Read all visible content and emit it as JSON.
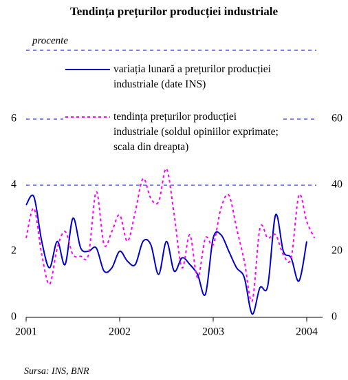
{
  "chart_data": {
    "type": "line",
    "title": "Tendința prețurilor producției industriale",
    "y_label": "procente",
    "source": "Sursa: INS, BNR",
    "xlim": [
      2001,
      2004.17
    ],
    "xticks": [
      2001,
      2002,
      2003,
      2004
    ],
    "ylim": [
      0,
      8
    ],
    "yticks": [
      0,
      2,
      4,
      6
    ],
    "y2lim": [
      0,
      80
    ],
    "y2ticks": [
      0,
      20,
      40,
      60
    ],
    "grid": true,
    "series": [
      {
        "name": "variația lunară a prețurilor producției industriale (date INS)",
        "color": "#0000cc",
        "axis": "y",
        "x": [
          2001,
          2001.083,
          2001.167,
          2001.25,
          2001.333,
          2001.417,
          2001.5,
          2001.583,
          2001.667,
          2001.75,
          2001.833,
          2001.917,
          2002,
          2002.083,
          2002.167,
          2002.25,
          2002.333,
          2002.417,
          2002.5,
          2002.583,
          2002.667,
          2002.75,
          2002.833,
          2002.917,
          2003,
          2003.083,
          2003.167,
          2003.25,
          2003.333,
          2003.417,
          2003.5,
          2003.583,
          2003.667,
          2003.75,
          2003.833,
          2003.917,
          2004
        ],
        "values": [
          3.4,
          3.65,
          2.3,
          1.5,
          2.3,
          1.6,
          3.0,
          2.1,
          2.0,
          2.1,
          1.4,
          1.5,
          2.0,
          1.7,
          1.6,
          2.3,
          2.2,
          1.3,
          2.3,
          1.4,
          1.8,
          1.6,
          1.3,
          0.7,
          2.4,
          2.5,
          2.0,
          1.5,
          1.2,
          0.1,
          0.9,
          0.95,
          3.1,
          2.0,
          1.8,
          1.1,
          2.3
        ]
      },
      {
        "name": "tendința prețurilor producției industriale (soldul opiniilor exprimate; scala din dreapta)",
        "color": "#ff00ff",
        "axis": "y2",
        "x": [
          2001,
          2001.083,
          2001.167,
          2001.25,
          2001.333,
          2001.417,
          2001.5,
          2001.583,
          2001.667,
          2001.75,
          2001.833,
          2001.917,
          2002,
          2002.083,
          2002.167,
          2002.25,
          2002.333,
          2002.417,
          2002.5,
          2002.583,
          2002.667,
          2002.75,
          2002.833,
          2002.917,
          2003,
          2003.083,
          2003.167,
          2003.25,
          2003.333,
          2003.417,
          2003.5,
          2003.583,
          2003.667,
          2003.75,
          2003.833,
          2003.917,
          2004,
          2004.083
        ],
        "values": [
          24,
          33,
          19,
          10,
          21,
          26,
          19,
          18.5,
          19,
          38,
          22,
          26,
          31,
          23,
          32,
          42,
          36,
          35,
          45,
          31,
          15,
          25,
          12,
          24,
          22,
          33,
          37,
          27,
          17,
          5,
          27,
          24,
          25,
          19,
          18,
          37,
          29,
          24
        ]
      }
    ]
  }
}
